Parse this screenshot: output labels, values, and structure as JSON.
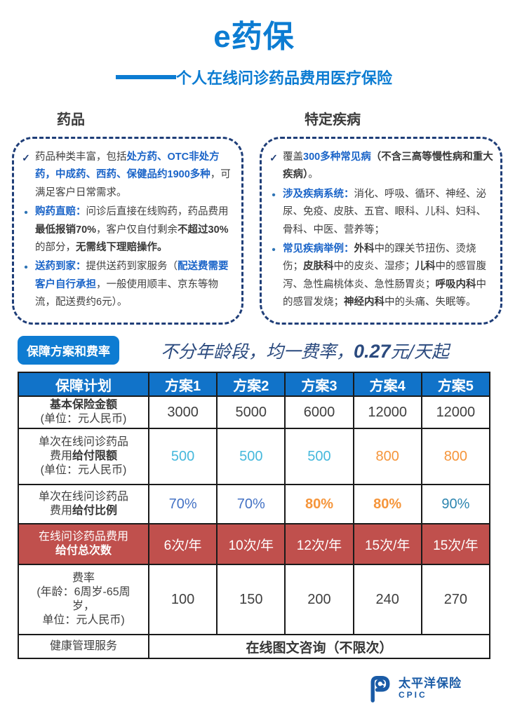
{
  "header": {
    "title": "e药保",
    "subtitle": "个人在线问诊药品费用医疗保险"
  },
  "colors": {
    "primary_blue": "#0C7CD2",
    "navy_border": "#1F3E78",
    "inline_blue": "#1A64C8",
    "text_dark": "#3F3F3F",
    "table_header_blue": "#1173C9",
    "red_row": "#C0504D",
    "value_cyan": "#45B8DC",
    "value_teal": "#2E86B0",
    "value_blue": "#4472C4",
    "value_orange": "#F5953B",
    "brand_blue": "#1A5BA6"
  },
  "features": [
    {
      "header": "药品",
      "items": [
        {
          "marker": "check",
          "segments": [
            {
              "t": "药品种类丰富，包括"
            },
            {
              "t": "处方药、OTC非处方药，中成药、西药、保健品约1900多种",
              "s": "blue"
            },
            {
              "t": "，可满足客户日常需求。"
            }
          ]
        },
        {
          "marker": "bullet",
          "segments": [
            {
              "t": "购药直赔：",
              "s": "blue"
            },
            {
              "t": "问诊后直接在线购药，药品费用"
            },
            {
              "t": "最低报销70%",
              "s": "bold"
            },
            {
              "t": "，客户仅自付剩余"
            },
            {
              "t": "不超过30%",
              "s": "bold"
            },
            {
              "t": "的部分，"
            },
            {
              "t": "无需线下理赔操作。",
              "s": "bold"
            }
          ]
        },
        {
          "marker": "bullet",
          "segments": [
            {
              "t": "送药到家：",
              "s": "blue"
            },
            {
              "t": "提供送药到家服务（"
            },
            {
              "t": "配送费需要客户自行承担",
              "s": "blue"
            },
            {
              "t": "，一般使用顺丰、京东等物流，配送费约6元）。"
            }
          ]
        }
      ]
    },
    {
      "header": "特定疾病",
      "items": [
        {
          "marker": "check",
          "segments": [
            {
              "t": "覆盖"
            },
            {
              "t": "300多种常见病",
              "s": "blue"
            },
            {
              "t": "（不含三高等慢性病和重大疾病）",
              "s": "bold"
            },
            {
              "t": "。"
            }
          ]
        },
        {
          "marker": "bullet",
          "segments": [
            {
              "t": "涉及疾病系统：",
              "s": "blue"
            },
            {
              "t": "消化、呼吸、循环、神经、泌尿、免疫、皮肤、五官、眼科、儿科、妇科、骨科、中医、营养等；"
            }
          ]
        },
        {
          "marker": "bullet",
          "segments": [
            {
              "t": "常见疾病举例：",
              "s": "blue"
            },
            {
              "t": "外科",
              "s": "bold"
            },
            {
              "t": "中的踝关节扭伤、烫烧伤；"
            },
            {
              "t": "皮肤科",
              "s": "bold"
            },
            {
              "t": "中的皮炎、湿疹；"
            },
            {
              "t": "儿科",
              "s": "bold"
            },
            {
              "t": "中的感冒腹泻、急性扁桃体炎、急性肠胃炎；"
            },
            {
              "t": "呼吸内科",
              "s": "bold"
            },
            {
              "t": "中的感冒发烧；"
            },
            {
              "t": "神经内科",
              "s": "bold"
            },
            {
              "t": "中的头痛、失眠等。"
            }
          ]
        }
      ]
    }
  ],
  "plans_band": {
    "badge": "保障方案和费率",
    "tagline_prefix": "不分年龄段，均一费率，",
    "tagline_price": "0.27",
    "tagline_suffix": "元/天起"
  },
  "table": {
    "corner_label": "保障计划",
    "plan_headers": [
      "方案1",
      "方案2",
      "方案3",
      "方案4",
      "方案5"
    ],
    "rows": [
      {
        "type": "normal",
        "label": [
          [
            {
              "t": "基本保险金额",
              "b": true
            }
          ],
          [
            {
              "t": "(单位：元人民币)"
            }
          ]
        ],
        "cells": [
          {
            "t": "3000",
            "c": "dark"
          },
          {
            "t": "5000",
            "c": "dark"
          },
          {
            "t": "6000",
            "c": "dark"
          },
          {
            "t": "12000",
            "c": "dark"
          },
          {
            "t": "12000",
            "c": "dark"
          }
        ]
      },
      {
        "type": "normal",
        "label": [
          [
            {
              "t": "单次在线问诊药品"
            }
          ],
          [
            {
              "t": "费用"
            },
            {
              "t": "给付限额",
              "b": true
            }
          ],
          [
            {
              "t": "(单位：元人民币)"
            }
          ]
        ],
        "cells": [
          {
            "t": "500",
            "c": "cyan"
          },
          {
            "t": "500",
            "c": "cyan"
          },
          {
            "t": "500",
            "c": "cyan"
          },
          {
            "t": "800",
            "c": "orange"
          },
          {
            "t": "800",
            "c": "orange"
          }
        ]
      },
      {
        "type": "normal",
        "label": [
          [
            {
              "t": "单次在线问诊药品"
            }
          ],
          [
            {
              "t": "费用"
            },
            {
              "t": "给付比例",
              "b": true
            }
          ]
        ],
        "cells": [
          {
            "t": "70%",
            "c": "blue"
          },
          {
            "t": "70%",
            "c": "blue"
          },
          {
            "t": "80%",
            "c": "orange",
            "b": true
          },
          {
            "t": "80%",
            "c": "orange",
            "b": true
          },
          {
            "t": "90%",
            "c": "cyan2"
          }
        ]
      },
      {
        "type": "red",
        "label": [
          [
            {
              "t": "在线问诊药品费用"
            }
          ],
          [
            {
              "t": "给付总次数",
              "b": true
            }
          ]
        ],
        "cells": [
          {
            "t": "6次/年"
          },
          {
            "t": "10次/年"
          },
          {
            "t": "12次/年"
          },
          {
            "t": "15次/年"
          },
          {
            "t": "15次/年"
          }
        ]
      },
      {
        "type": "normal",
        "label": [
          [
            {
              "t": "费率"
            }
          ],
          [
            {
              "t": "(年龄：6周岁-65周"
            }
          ],
          [
            {
              "t": "岁，"
            }
          ],
          [
            {
              "t": "单位：元人民币)"
            }
          ]
        ],
        "cells": [
          {
            "t": "100",
            "c": "dark"
          },
          {
            "t": "150",
            "c": "dark"
          },
          {
            "t": "200",
            "c": "dark"
          },
          {
            "t": "240",
            "c": "dark"
          },
          {
            "t": "270",
            "c": "dark"
          }
        ]
      },
      {
        "type": "merged",
        "label": [
          [
            {
              "t": "健康管理服务"
            }
          ]
        ],
        "merged_cell": {
          "t": "在线图文咨询（不限次）"
        }
      }
    ]
  },
  "footer": {
    "brand_cn": "太平洋保险",
    "brand_en": "CPIC",
    "logo": "cpic-logo"
  }
}
